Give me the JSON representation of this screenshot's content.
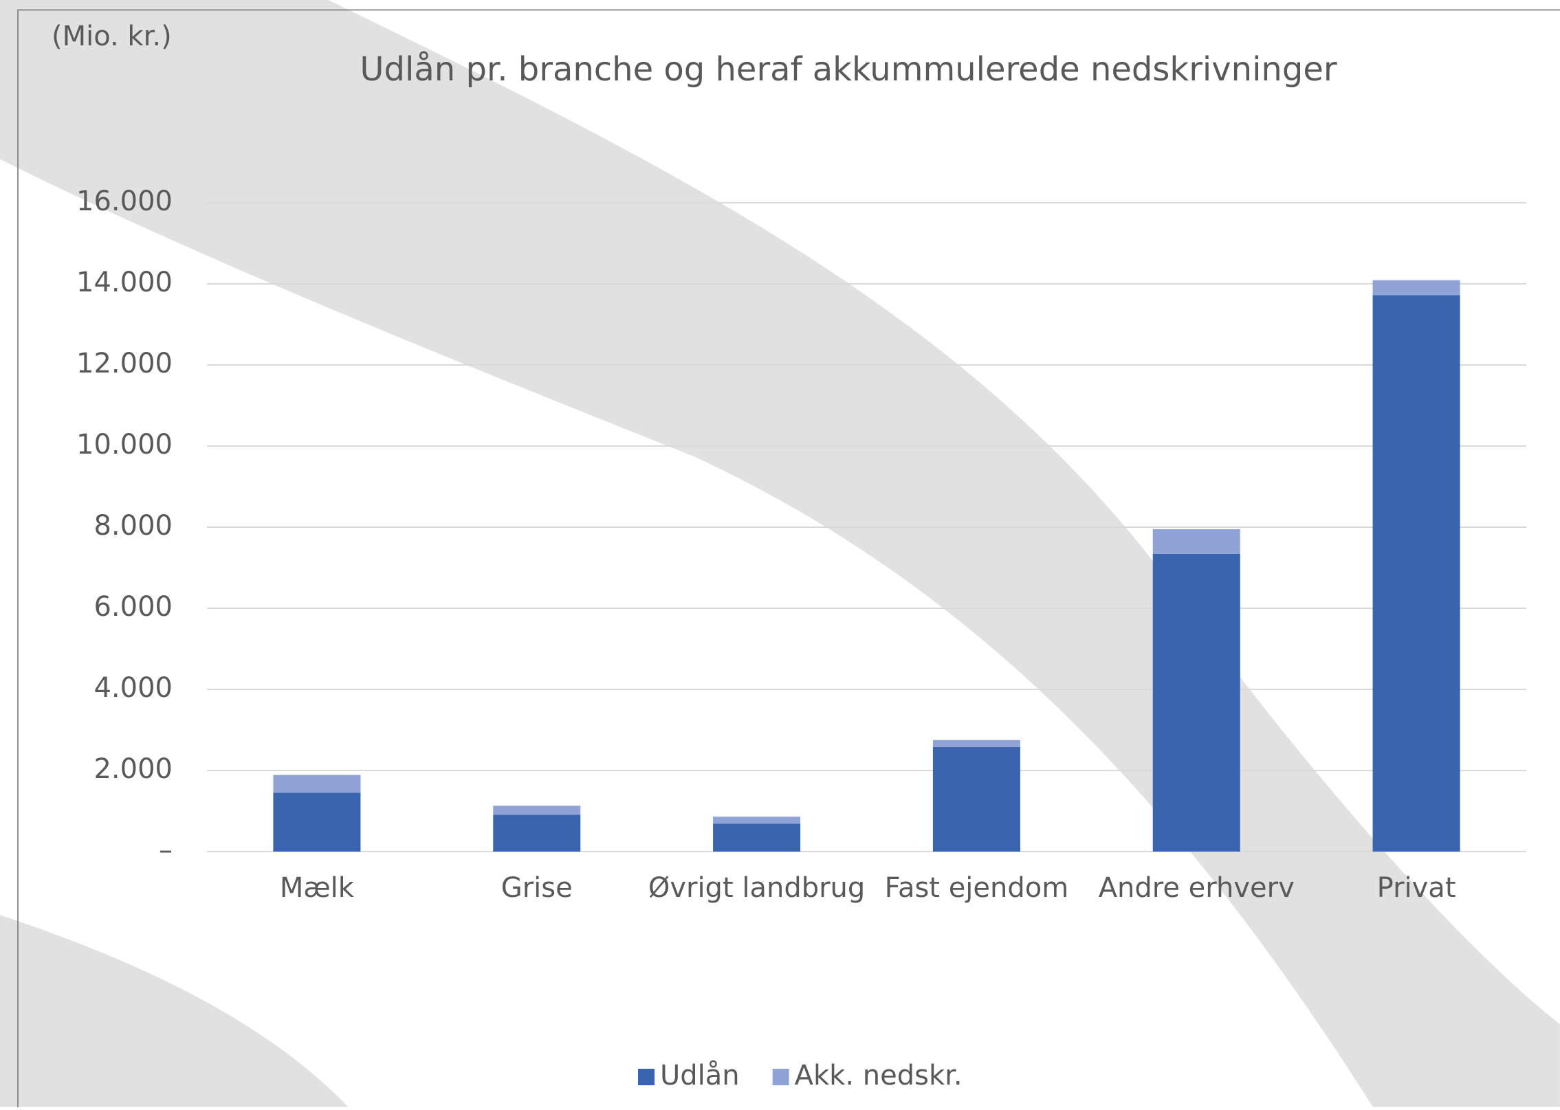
{
  "chart_data": {
    "type": "stacked_bar",
    "title": "Udlån pr. branche og heraf akkummulerede nedskrivninger",
    "unit_label": "(Mio. kr.)",
    "categories": [
      "Mælk",
      "Grise",
      "Øvrigt landbrug",
      "Fast ejendom",
      "Andre erhverv",
      "Privat"
    ],
    "series": [
      {
        "name": "Udlån",
        "color": "#3a64ad",
        "values": [
          1450,
          910,
          690,
          2580,
          7340,
          13720
        ]
      },
      {
        "name": "Akk. nedskr.",
        "color": "#8fa3d6",
        "values": [
          440,
          220,
          170,
          170,
          610,
          370
        ]
      }
    ],
    "ylim": [
      0,
      16000
    ],
    "yticks": [
      {
        "value": 0,
        "label": "–"
      },
      {
        "value": 2000,
        "label": "2.000"
      },
      {
        "value": 4000,
        "label": "4.000"
      },
      {
        "value": 6000,
        "label": "6.000"
      },
      {
        "value": 8000,
        "label": "8.000"
      },
      {
        "value": 10000,
        "label": "10.000"
      },
      {
        "value": 12000,
        "label": "12.000"
      },
      {
        "value": 14000,
        "label": "14.000"
      },
      {
        "value": 16000,
        "label": "16.000"
      }
    ],
    "grid": true,
    "legend": "bottom"
  }
}
